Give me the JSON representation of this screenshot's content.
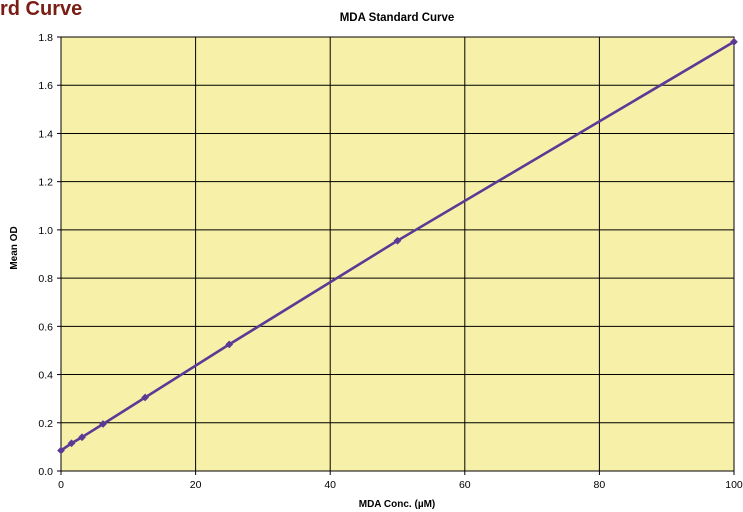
{
  "page": {
    "cut_title": "rd Curve"
  },
  "colors": {
    "plot_bg": "#f7f0a9",
    "series": "#5b3a96",
    "grid": "#000000",
    "cut_title": "#7a1d14"
  },
  "chart_data": {
    "type": "line",
    "title": "MDA Standard Curve",
    "xlabel": "MDA Conc. (µM)",
    "ylabel": "Mean OD",
    "xlim": [
      0,
      100
    ],
    "ylim": [
      0,
      1.8
    ],
    "xticks": [
      "0",
      "20",
      "40",
      "60",
      "80",
      "100"
    ],
    "yticks": [
      "0.0",
      "0.2",
      "0.4",
      "0.6",
      "0.8",
      "1.0",
      "1.2",
      "1.4",
      "1.6",
      "1.8"
    ],
    "grid": true,
    "legend": "none",
    "marker": "diamond",
    "series": [
      {
        "x": [
          0,
          1.5625,
          3.125,
          6.25,
          12.5,
          25,
          50,
          100
        ],
        "y": [
          0.085,
          0.115,
          0.14,
          0.195,
          0.305,
          0.525,
          0.955,
          1.78
        ]
      }
    ]
  }
}
